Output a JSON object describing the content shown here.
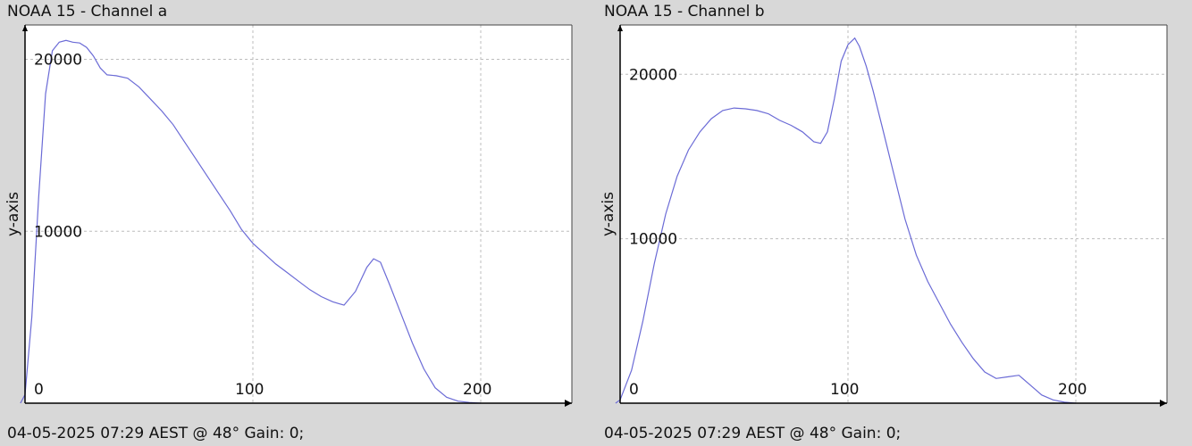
{
  "chart_data": [
    {
      "type": "line",
      "title": "NOAA 15 - Channel a",
      "footer": "04-05-2025 07:29 AEST @ 48° Gain: 0;",
      "ylabel": "y-axis",
      "xlabel": "",
      "xlim": [
        0,
        240
      ],
      "ylim": [
        0,
        22000
      ],
      "grid": true,
      "x_ticks": [
        0,
        100,
        200
      ],
      "y_ticks": [
        10000,
        20000
      ],
      "colors": {
        "line": "#6b6bd6",
        "grid": "#bdbdbd",
        "axis": "#000000"
      },
      "series": [
        {
          "x": [
            -2,
            0,
            3,
            6,
            9,
            12,
            15,
            18,
            21,
            24,
            27,
            30,
            33,
            36,
            40,
            45,
            50,
            55,
            60,
            65,
            70,
            75,
            80,
            85,
            90,
            95,
            100,
            105,
            110,
            115,
            120,
            125,
            130,
            135,
            140,
            145,
            150,
            153,
            156,
            160,
            165,
            170,
            175,
            180,
            185,
            190,
            195,
            200
          ],
          "y": [
            0,
            500,
            5000,
            12000,
            18000,
            20500,
            21000,
            21100,
            21000,
            20950,
            20700,
            20200,
            19500,
            19100,
            19050,
            18900,
            18400,
            17700,
            17000,
            16200,
            15200,
            14200,
            13200,
            12200,
            11200,
            10100,
            9300,
            8700,
            8100,
            7600,
            7100,
            6600,
            6200,
            5900,
            5700,
            6500,
            7900,
            8400,
            8200,
            6900,
            5200,
            3500,
            2000,
            900,
            350,
            120,
            40,
            0
          ]
        }
      ]
    },
    {
      "type": "line",
      "title": "NOAA 15 - Channel b",
      "footer": "04-05-2025 07:29 AEST @ 48° Gain: 0;",
      "ylabel": "y-axis",
      "xlabel": "",
      "xlim": [
        0,
        240
      ],
      "ylim": [
        0,
        23000
      ],
      "grid": true,
      "x_ticks": [
        0,
        100,
        200
      ],
      "y_ticks": [
        10000,
        20000
      ],
      "colors": {
        "line": "#6b6bd6",
        "grid": "#bdbdbd",
        "axis": "#000000"
      },
      "series": [
        {
          "x": [
            -2,
            0,
            5,
            10,
            15,
            20,
            25,
            30,
            35,
            40,
            45,
            50,
            55,
            60,
            65,
            70,
            75,
            80,
            85,
            88,
            91,
            94,
            97,
            100,
            103,
            105,
            108,
            111,
            115,
            120,
            125,
            130,
            135,
            140,
            145,
            150,
            155,
            160,
            165,
            170,
            175,
            180,
            185,
            190,
            195,
            200
          ],
          "y": [
            0,
            200,
            2000,
            5000,
            8500,
            11500,
            13800,
            15400,
            16500,
            17300,
            17800,
            17950,
            17900,
            17800,
            17600,
            17200,
            16900,
            16500,
            15900,
            15800,
            16500,
            18500,
            20800,
            21800,
            22200,
            21700,
            20500,
            19000,
            16800,
            14000,
            11200,
            9000,
            7400,
            6100,
            4800,
            3700,
            2700,
            1900,
            1500,
            1600,
            1700,
            1100,
            500,
            200,
            60,
            0
          ]
        }
      ]
    }
  ]
}
